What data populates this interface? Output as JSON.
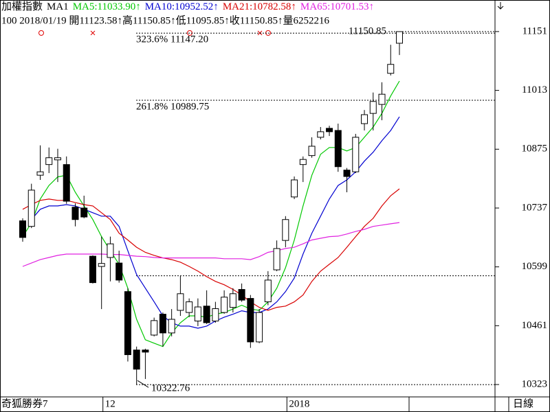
{
  "chart_data": {
    "type": "candlestick",
    "title": "加權指數",
    "subtitle": "MA1",
    "info": "100 2018/01/19 開11123.58↑高11150.85↑低11095.85↑收11150.85↑量6252216",
    "source": "奇狐勝券7",
    "period": "日線",
    "categories": [
      null,
      null,
      null,
      null,
      null,
      null,
      null,
      null,
      null,
      "12",
      null,
      null,
      null,
      null,
      null,
      null,
      null,
      null,
      null,
      null,
      null,
      null,
      null,
      null,
      null,
      null,
      null,
      null,
      null,
      null,
      "2018",
      null,
      null,
      null,
      null,
      null,
      null,
      null,
      null,
      null,
      null,
      null,
      null,
      null
    ],
    "open": [
      10707,
      10694,
      10814,
      10839,
      10850,
      10839,
      10739,
      10737,
      10624,
      10600,
      10621,
      10608,
      10541,
      10404,
      10404,
      10439,
      10488,
      10444,
      10497,
      10492,
      10472,
      10507,
      10472,
      10492,
      10504,
      10546,
      10525,
      10423,
      10517,
      10592,
      10661,
      10763,
      10839,
      10860,
      10903,
      10924,
      10919,
      10826,
      10822,
      10935,
      10959,
      10980,
      11053,
      11123.58
    ],
    "high": [
      10713,
      10794,
      10884,
      10879,
      10876,
      10858,
      10748,
      10766,
      10626,
      10670,
      10670,
      10637,
      10549,
      10412,
      10407,
      10480,
      10492,
      10500,
      10578,
      10525,
      10525,
      10544,
      10517,
      10544,
      10549,
      10560,
      10533,
      10500,
      10589,
      10661,
      10718,
      10811,
      10858,
      10903,
      10927,
      10930,
      10935,
      10831,
      10911,
      10967,
      11008,
      11032,
      11120,
      11150.85
    ],
    "low": [
      10658,
      10690,
      10803,
      10819,
      10798,
      10747,
      10694,
      10713,
      10560,
      10500,
      10565,
      10562,
      10377,
      10323,
      10336,
      10436,
      10412,
      10436,
      10484,
      10481,
      10460,
      10465,
      10468,
      10489,
      10492,
      10517,
      10409,
      10420,
      10509,
      10589,
      10645,
      10758,
      10798,
      10855,
      10898,
      10906,
      10822,
      10774,
      10819,
      10919,
      10919,
      10943,
      11048,
      11095.85
    ],
    "close": [
      10668,
      10779,
      10822,
      10855,
      10855,
      10753,
      10710,
      10716,
      10562,
      10607,
      10653,
      10568,
      10393,
      10359,
      10399,
      10473,
      10444,
      10476,
      10536,
      10517,
      10505,
      10468,
      10501,
      10528,
      10536,
      10521,
      10423,
      10492,
      10568,
      10642,
      10710,
      10803,
      10851,
      10882,
      10916,
      10916,
      10834,
      10811,
      10903,
      10956,
      10987,
      11004,
      11074,
      11150.85
    ],
    "series": [
      {
        "name": "MA5:11033.90↑",
        "color": "#00c800",
        "values": [
          10670,
          10702,
          10758,
          10790,
          10810,
          10814,
          10774,
          10742,
          10710,
          10670,
          10637,
          10605,
          10549,
          10476,
          10428,
          10420,
          10412,
          10444,
          10468,
          10484,
          10484,
          10481,
          10488,
          10492,
          10500,
          10509,
          10500,
          10497,
          10517,
          10549,
          10597,
          10662,
          10742,
          10814,
          10863,
          10879,
          10879,
          10871,
          10879,
          10903,
          10927,
          10959,
          11000,
          11035
        ]
      },
      {
        "name": "MA10:10952.52↑",
        "color": "#0000d0",
        "values": [
          null,
          10710,
          10734,
          10742,
          10742,
          10745,
          10742,
          10734,
          10726,
          10718,
          10718,
          10694,
          10637,
          10581,
          10549,
          10517,
          10484,
          10468,
          10460,
          10460,
          10455,
          10460,
          10472,
          10481,
          10488,
          10496,
          10492,
          10492,
          10500,
          10517,
          10541,
          10573,
          10629,
          10678,
          10718,
          10758,
          10790,
          10803,
          10822,
          10847,
          10868,
          10895,
          10919,
          10951
        ]
      },
      {
        "name": "MA21:10782.58↑",
        "color": "#d80000",
        "values": [
          10734,
          10745,
          10755,
          10758,
          10755,
          10755,
          10750,
          10745,
          10742,
          10726,
          10710,
          10678,
          10662,
          10645,
          10633,
          10626,
          10620,
          10616,
          10610,
          10600,
          10589,
          10576,
          10565,
          10557,
          10546,
          10533,
          10517,
          10504,
          10497,
          10504,
          10507,
          10517,
          10533,
          10565,
          10589,
          10605,
          10621,
          10645,
          10670,
          10694,
          10713,
          10742,
          10766,
          10782
        ]
      },
      {
        "name": "MA65:10701.53↑",
        "color": "#e020e0",
        "values": [
          10600,
          10608,
          10616,
          10621,
          10626,
          10629,
          10629,
          10629,
          10629,
          10629,
          10628,
          10628,
          10626,
          10624,
          10623,
          10621,
          10620,
          10620,
          10620,
          10620,
          10620,
          10620,
          10620,
          10618,
          10618,
          10618,
          10616,
          10623,
          10633,
          10637,
          10642,
          10645,
          10653,
          10662,
          10666,
          10670,
          10671,
          10676,
          10682,
          10687,
          10694,
          10697,
          10700,
          10703
        ]
      }
    ],
    "ylim": [
      10294,
      11225
    ],
    "yticks": [
      11151,
      11013,
      10875,
      10737,
      10599,
      10461,
      10323
    ],
    "annotations": [
      {
        "value": 11147.2,
        "label": "323.6% 11147.20"
      },
      {
        "value": 10989.75,
        "label": "261.8% 10989.75"
      },
      {
        "value": 10578
      },
      {
        "value": 10322.76,
        "label": "10322.76"
      },
      {
        "value": 11150.85,
        "label": "11150.85"
      }
    ]
  }
}
